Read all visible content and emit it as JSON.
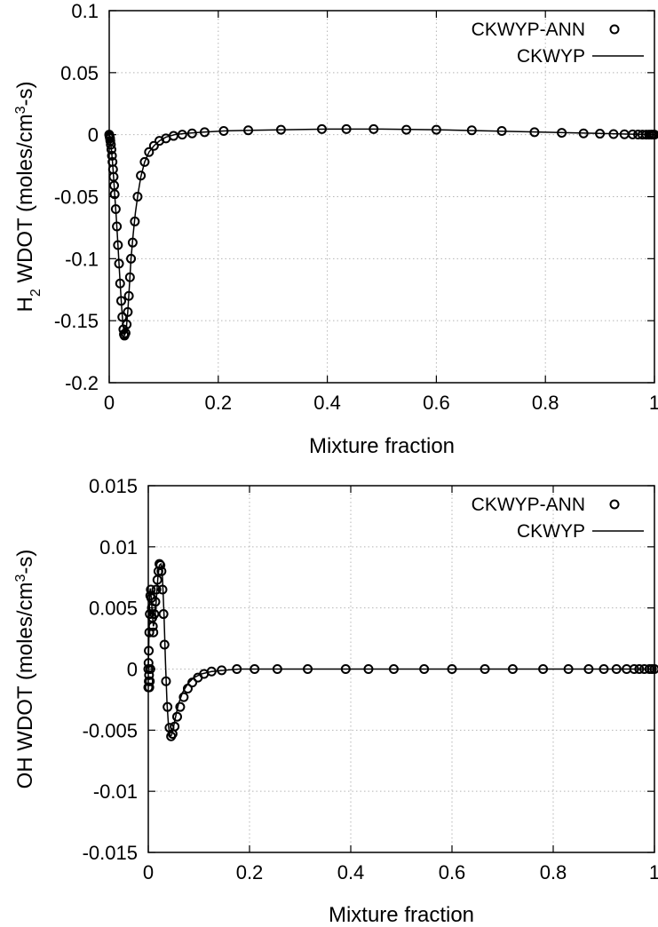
{
  "chart_data": [
    {
      "type": "line",
      "title": "",
      "xlabel": "Mixture fraction",
      "ylabel": {
        "prefix": "H",
        "sub": "2",
        "mid": " WDOT (moles/cm",
        "sup": "3",
        "suffix": "-s)"
      },
      "xlim": [
        0,
        1
      ],
      "ylim": [
        -0.2,
        0.1
      ],
      "xticks": [
        0,
        0.2,
        0.4,
        0.6,
        0.8,
        1
      ],
      "xtick_labels": [
        "0",
        "0.2",
        "0.4",
        "0.6",
        "0.8",
        "1"
      ],
      "yticks": [
        -0.2,
        -0.15,
        -0.1,
        -0.05,
        0,
        0.05,
        0.1
      ],
      "ytick_labels": [
        "-0.2",
        "-0.15",
        "-0.1",
        "-0.05",
        "0",
        "0.05",
        "0.1"
      ],
      "grid": true,
      "legend_position": "top-right",
      "series": [
        {
          "name": "CKWYP-ANN",
          "style": "markers",
          "x": [
            0.0,
            0.0005,
            0.001,
            0.0015,
            0.002,
            0.003,
            0.004,
            0.005,
            0.006,
            0.007,
            0.008,
            0.009,
            0.01,
            0.012,
            0.014,
            0.016,
            0.018,
            0.02,
            0.022,
            0.024,
            0.026,
            0.027,
            0.028,
            0.03,
            0.032,
            0.034,
            0.036,
            0.038,
            0.04,
            0.043,
            0.047,
            0.052,
            0.058,
            0.065,
            0.073,
            0.082,
            0.092,
            0.104,
            0.118,
            0.134,
            0.152,
            0.175,
            0.21,
            0.255,
            0.315,
            0.39,
            0.435,
            0.485,
            0.545,
            0.6,
            0.665,
            0.72,
            0.78,
            0.83,
            0.87,
            0.9,
            0.925,
            0.945,
            0.96,
            0.97,
            0.978,
            0.985,
            0.99,
            0.994,
            0.997,
            1.0
          ],
          "y": [
            0.0,
            -0.001,
            -0.002,
            -0.003,
            -0.005,
            -0.008,
            -0.012,
            -0.017,
            -0.022,
            -0.028,
            -0.034,
            -0.041,
            -0.048,
            -0.06,
            -0.074,
            -0.089,
            -0.104,
            -0.12,
            -0.134,
            -0.147,
            -0.157,
            -0.161,
            -0.162,
            -0.16,
            -0.153,
            -0.143,
            -0.13,
            -0.115,
            -0.1,
            -0.087,
            -0.07,
            -0.05,
            -0.033,
            -0.022,
            -0.014,
            -0.009,
            -0.005,
            -0.003,
            -0.001,
            0.0,
            0.001,
            0.002,
            0.003,
            0.0035,
            0.004,
            0.0045,
            0.0045,
            0.0045,
            0.004,
            0.004,
            0.0035,
            0.003,
            0.002,
            0.0015,
            0.001,
            0.0008,
            0.0005,
            0.0003,
            0.0002,
            0.0001,
            0.0,
            0.0,
            0.0,
            0.0,
            0.0,
            0.0
          ]
        },
        {
          "name": "CKWYP",
          "style": "line",
          "x": [
            0.0,
            0.002,
            0.004,
            0.006,
            0.008,
            0.01,
            0.013,
            0.016,
            0.019,
            0.022,
            0.025,
            0.028,
            0.031,
            0.034,
            0.037,
            0.04,
            0.044,
            0.048,
            0.053,
            0.058,
            0.065,
            0.073,
            0.082,
            0.092,
            0.104,
            0.12,
            0.14,
            0.17,
            0.21,
            0.26,
            0.32,
            0.4,
            0.5,
            0.6,
            0.7,
            0.8,
            0.9,
            0.95,
            1.0
          ],
          "y": [
            0.0,
            -0.005,
            -0.012,
            -0.022,
            -0.034,
            -0.048,
            -0.067,
            -0.089,
            -0.112,
            -0.134,
            -0.152,
            -0.162,
            -0.158,
            -0.143,
            -0.122,
            -0.1,
            -0.08,
            -0.063,
            -0.047,
            -0.034,
            -0.022,
            -0.014,
            -0.009,
            -0.005,
            -0.002,
            0.0,
            0.001,
            0.002,
            0.003,
            0.0035,
            0.004,
            0.0045,
            0.0045,
            0.004,
            0.003,
            0.002,
            0.001,
            0.0005,
            0.0
          ]
        }
      ]
    },
    {
      "type": "line",
      "title": "",
      "xlabel": "Mixture fraction",
      "ylabel": {
        "prefix": "OH",
        "sub": "",
        "mid": " WDOT (moles/cm",
        "sup": "3",
        "suffix": "-s)"
      },
      "xlim": [
        0,
        1
      ],
      "ylim": [
        -0.015,
        0.015
      ],
      "xticks": [
        0,
        0.2,
        0.4,
        0.6,
        0.8,
        1
      ],
      "xtick_labels": [
        "0",
        "0.2",
        "0.4",
        "0.6",
        "0.8",
        "1"
      ],
      "yticks": [
        -0.015,
        -0.01,
        -0.005,
        0,
        0.005,
        0.01,
        0.015
      ],
      "ytick_labels": [
        "-0.015",
        "-0.01",
        "-0.005",
        "0",
        "0.005",
        "0.01",
        "0.015"
      ],
      "grid": true,
      "legend_position": "top-right",
      "series": [
        {
          "name": "CKWYP-ANN",
          "style": "markers",
          "x": [
            0.0,
            0.0,
            0.0005,
            0.001,
            0.001,
            0.0015,
            0.002,
            0.002,
            0.003,
            0.003,
            0.004,
            0.004,
            0.005,
            0.006,
            0.007,
            0.008,
            0.009,
            0.01,
            0.012,
            0.014,
            0.016,
            0.018,
            0.02,
            0.022,
            0.024,
            0.026,
            0.028,
            0.03,
            0.032,
            0.035,
            0.038,
            0.042,
            0.045,
            0.048,
            0.052,
            0.057,
            0.063,
            0.07,
            0.078,
            0.087,
            0.098,
            0.11,
            0.125,
            0.145,
            0.175,
            0.21,
            0.255,
            0.315,
            0.39,
            0.435,
            0.485,
            0.545,
            0.6,
            0.665,
            0.72,
            0.78,
            0.83,
            0.87,
            0.9,
            0.925,
            0.945,
            0.96,
            0.97,
            0.98,
            0.99,
            0.995,
            1.0
          ],
          "y": [
            0.0,
            -0.0015,
            0.0005,
            -0.001,
            0.0015,
            -0.0005,
            0.003,
            -0.0015,
            0.0045,
            -0.001,
            0.006,
            0.0,
            0.0065,
            0.0058,
            0.005,
            0.0042,
            0.0035,
            0.003,
            0.0045,
            0.0055,
            0.0065,
            0.0073,
            0.008,
            0.0086,
            0.0085,
            0.008,
            0.0065,
            0.0045,
            0.002,
            -0.001,
            -0.0031,
            -0.0048,
            -0.0055,
            -0.0053,
            -0.0047,
            -0.0039,
            -0.0031,
            -0.0023,
            -0.0016,
            -0.0011,
            -0.0007,
            -0.0004,
            -0.0002,
            -0.0001,
            0.0,
            0.0,
            0.0,
            0.0,
            0.0,
            0.0,
            0.0,
            0.0,
            0.0,
            0.0,
            0.0,
            0.0,
            0.0,
            0.0,
            0.0,
            0.0,
            0.0,
            0.0,
            0.0,
            0.0,
            0.0,
            0.0,
            0.0
          ]
        },
        {
          "name": "CKWYP",
          "style": "line",
          "x": [
            0.0,
            0.001,
            0.002,
            0.003,
            0.004,
            0.006,
            0.008,
            0.01,
            0.013,
            0.016,
            0.019,
            0.022,
            0.025,
            0.028,
            0.031,
            0.034,
            0.037,
            0.04,
            0.043,
            0.046,
            0.05,
            0.055,
            0.06,
            0.068,
            0.078,
            0.09,
            0.105,
            0.125,
            0.15,
            0.18,
            0.22,
            0.3,
            0.5,
            0.7,
            0.9,
            1.0
          ],
          "y": [
            0.0,
            0.002,
            0.0045,
            0.0062,
            0.0066,
            0.0058,
            0.0045,
            0.0035,
            0.004,
            0.0058,
            0.0075,
            0.0085,
            0.0086,
            0.0075,
            0.0045,
            0.0005,
            -0.0028,
            -0.0047,
            -0.0055,
            -0.0054,
            -0.0047,
            -0.0037,
            -0.0028,
            -0.0019,
            -0.0012,
            -0.0007,
            -0.0004,
            -0.0002,
            -0.0001,
            0.0,
            0.0,
            0.0,
            0.0,
            0.0,
            0.0,
            0.0
          ]
        }
      ]
    }
  ]
}
